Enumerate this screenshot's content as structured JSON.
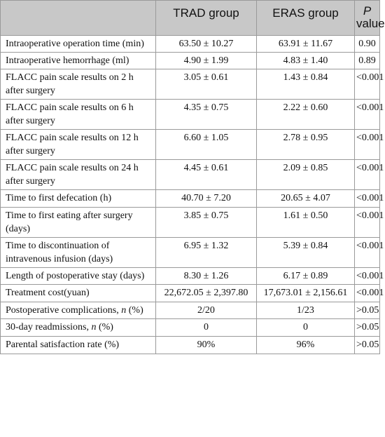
{
  "header": {
    "label_col": "",
    "trad": "TRAD group",
    "eras": "ERAS group",
    "p_letter": "P",
    "p_word": "value"
  },
  "rows": [
    {
      "label": "Intraoperative operation time (min)",
      "trad": "63.50 ± 10.27",
      "eras": "63.91 ± 11.67",
      "p": "0.90"
    },
    {
      "label": "Intraoperative hemorrhage (ml)",
      "trad": "4.90 ± 1.99",
      "eras": "4.83 ± 1.40",
      "p": "0.89"
    },
    {
      "label": "FLACC pain scale results on 2 h after surgery",
      "trad": "3.05 ± 0.61",
      "eras": "1.43 ± 0.84",
      "p": "<0.001"
    },
    {
      "label": "FLACC pain scale results on 6 h after surgery",
      "trad": "4.35 ± 0.75",
      "eras": "2.22 ± 0.60",
      "p": "<0.001"
    },
    {
      "label": "FLACC pain scale results on 12 h after surgery",
      "trad": "6.60 ± 1.05",
      "eras": "2.78 ± 0.95",
      "p": "<0.001"
    },
    {
      "label": "FLACC pain scale results on 24 h after surgery",
      "trad": "4.45 ± 0.61",
      "eras": "2.09 ± 0.85",
      "p": "<0.001"
    },
    {
      "label": "Time to first defecation (h)",
      "trad": "40.70 ± 7.20",
      "eras": "20.65 ± 4.07",
      "p": "<0.001"
    },
    {
      "label": "Time to first eating after surgery (days)",
      "trad": "3.85 ± 0.75",
      "eras": "1.61 ± 0.50",
      "p": "<0.001"
    },
    {
      "label": "Time to discontinuation of intravenous infusion (days)",
      "trad": "6.95 ± 1.32",
      "eras": "5.39 ± 0.84",
      "p": "<0.001"
    },
    {
      "label": "Length of postoperative stay (days)",
      "trad": "8.30 ± 1.26",
      "eras": "6.17 ± 0.89",
      "p": "<0.001"
    },
    {
      "label": "Treatment cost(yuan)",
      "trad": "22,672.05 ± 2,397.80",
      "eras": "17,673.01 ± 2,156.61",
      "p": "<0.001"
    },
    {
      "label_pre": "Postoperative complications, ",
      "label_ital": "n",
      "label_post": " (%)",
      "trad": "2/20",
      "eras": "1/23",
      "p": ">0.05"
    },
    {
      "label_pre": "30-day readmissions, ",
      "label_ital": "n",
      "label_post": " (%)",
      "trad": "0",
      "eras": "0",
      "p": ">0.05"
    },
    {
      "label": "Parental satisfaction rate (%)",
      "trad": "90%",
      "eras": "96%",
      "p": ">0.05"
    }
  ]
}
